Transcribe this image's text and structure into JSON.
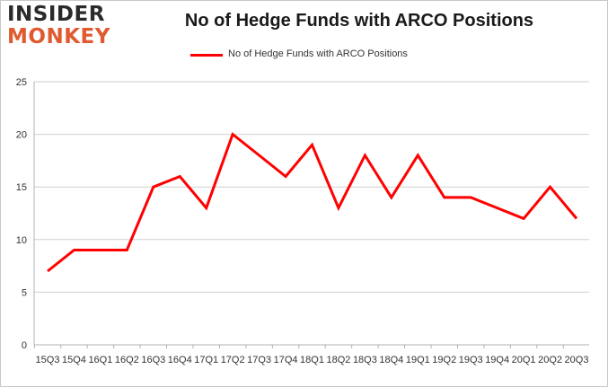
{
  "logo": {
    "line1": "INSIDER",
    "line2": "MONKEY",
    "line1_color": "#2a2a2a",
    "line2_color": "#e05a30"
  },
  "chart_data": {
    "type": "line",
    "title": "No of Hedge Funds with ARCO Positions",
    "xlabel": "",
    "ylabel": "",
    "x": [
      "15Q3",
      "15Q4",
      "16Q1",
      "16Q2",
      "16Q3",
      "16Q4",
      "17Q1",
      "17Q2",
      "17Q3",
      "17Q4",
      "18Q1",
      "18Q2",
      "18Q3",
      "18Q4",
      "19Q1",
      "19Q2",
      "19Q3",
      "19Q4",
      "20Q1",
      "20Q2",
      "20Q3"
    ],
    "series": [
      {
        "name": "No of Hedge Funds with ARCO Positions",
        "color": "#ff0000",
        "values": [
          7,
          9,
          9,
          9,
          15,
          16,
          13,
          20,
          18,
          16,
          19,
          13,
          18,
          14,
          18,
          14,
          14,
          13,
          12,
          15,
          12
        ]
      }
    ],
    "ylim": [
      0,
      25
    ],
    "yticks": [
      0,
      5,
      10,
      15,
      20,
      25
    ],
    "grid": true,
    "legend": "top-center"
  }
}
